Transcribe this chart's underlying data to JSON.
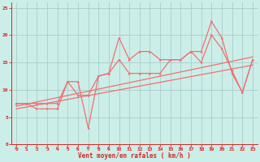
{
  "bg_color": "#cceee8",
  "grid_color": "#aacccc",
  "line_color": "#f07070",
  "text_color": "#dd2222",
  "xlabel": "Vent moyen/en rafales ( km/h )",
  "xlim": [
    -0.5,
    23.5
  ],
  "ylim": [
    0,
    26
  ],
  "xticks": [
    0,
    1,
    2,
    3,
    4,
    5,
    6,
    7,
    8,
    9,
    10,
    11,
    12,
    13,
    14,
    15,
    16,
    17,
    18,
    19,
    20,
    21,
    22,
    23
  ],
  "yticks": [
    0,
    5,
    10,
    15,
    20,
    25
  ],
  "line1_x": [
    0,
    1,
    2,
    3,
    4,
    5,
    6,
    7,
    8,
    9,
    10,
    11,
    12,
    13,
    14,
    15,
    16,
    17,
    18,
    19,
    20,
    21,
    22,
    23
  ],
  "line1_y": [
    7.5,
    7.5,
    6.5,
    6.5,
    6.5,
    11.5,
    11.5,
    3.0,
    12.5,
    13.0,
    19.5,
    15.5,
    17.0,
    17.0,
    15.5,
    15.5,
    15.5,
    17.0,
    17.0,
    22.5,
    19.5,
    13.0,
    9.5,
    15.5
  ],
  "line2_x": [
    0,
    1,
    2,
    3,
    4,
    5,
    6,
    7,
    8,
    9,
    10,
    11,
    12,
    13,
    14,
    15,
    16,
    17,
    18,
    19,
    20,
    21,
    22,
    23
  ],
  "line2_y": [
    7.5,
    7.5,
    7.5,
    7.5,
    7.5,
    11.5,
    9.0,
    9.0,
    12.5,
    13.0,
    15.5,
    13.0,
    13.0,
    13.0,
    13.0,
    15.5,
    15.5,
    17.0,
    15.0,
    20.0,
    17.5,
    13.5,
    9.5,
    15.5
  ],
  "trend1_x": [
    0,
    23
  ],
  "trend1_y": [
    7.0,
    16.0
  ],
  "trend2_x": [
    0,
    23
  ],
  "trend2_y": [
    6.5,
    14.5
  ]
}
